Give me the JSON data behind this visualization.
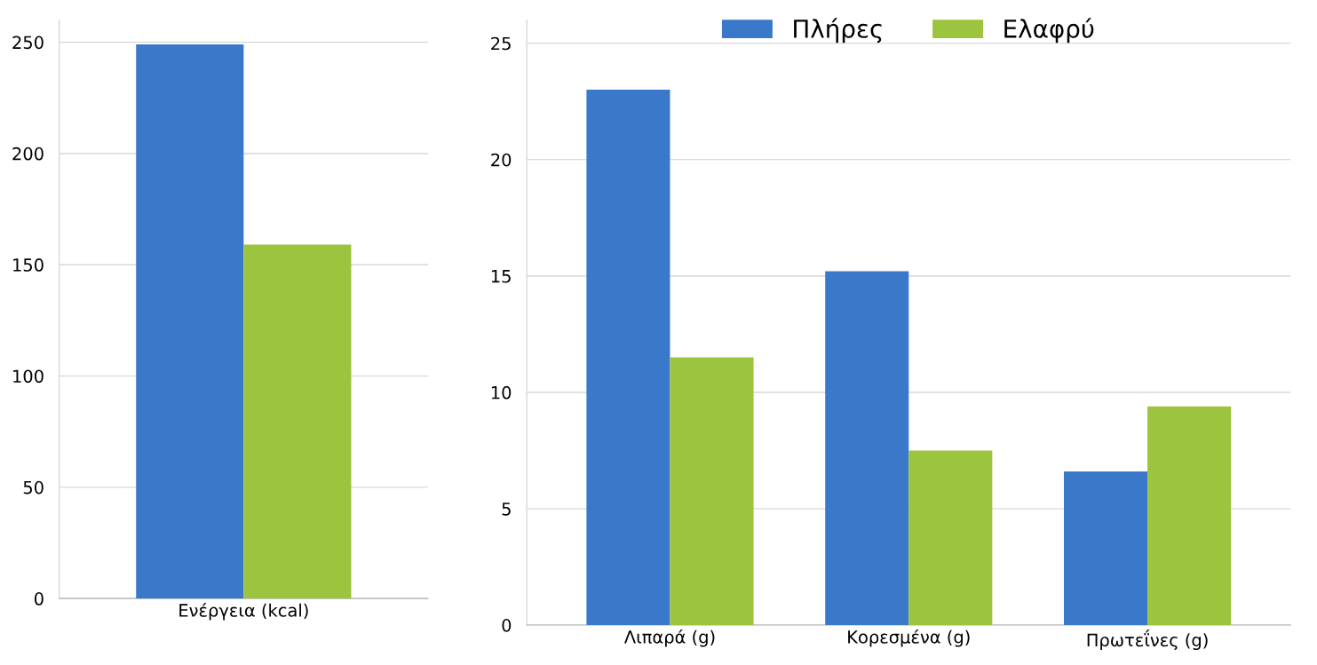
{
  "chart_data": [
    {
      "type": "bar",
      "categories": [
        "Ενέργεια (kcal)"
      ],
      "ylim": [
        0,
        260
      ],
      "yticks": [
        0,
        50,
        100,
        150,
        200,
        250
      ],
      "grid": "y",
      "series": [
        {
          "color": "#3a78c9",
          "values": [
            249
          ]
        },
        {
          "color": "#9cc43e",
          "values": [
            159
          ]
        }
      ]
    },
    {
      "type": "bar",
      "categories": [
        "Λιπαρά (g)",
        "Κορεσμένα (g)",
        "Πρωτεΐνες (g)"
      ],
      "ylim": [
        0,
        26
      ],
      "yticks": [
        0,
        5,
        10,
        15,
        20,
        25
      ],
      "grid": "y",
      "legend": "top",
      "series": [
        {
          "name": "Πλήρες",
          "color": "#3a78c9",
          "values": [
            23.0,
            15.2,
            6.6
          ]
        },
        {
          "name": "Ελαφρύ",
          "color": "#9cc43e",
          "values": [
            11.5,
            7.5,
            9.4
          ]
        }
      ]
    }
  ]
}
